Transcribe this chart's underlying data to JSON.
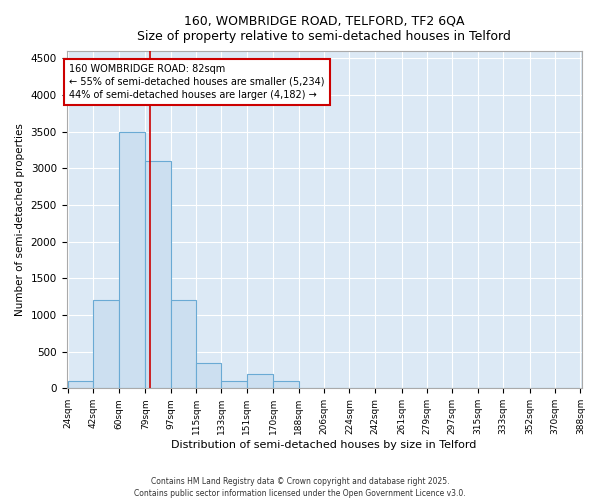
{
  "title_line1": "160, WOMBRIDGE ROAD, TELFORD, TF2 6QA",
  "title_line2": "Size of property relative to semi-detached houses in Telford",
  "xlabel": "Distribution of semi-detached houses by size in Telford",
  "ylabel": "Number of semi-detached properties",
  "bins": [
    24,
    42,
    60,
    79,
    97,
    115,
    133,
    151,
    170,
    188,
    206,
    224,
    242,
    261,
    279,
    297,
    315,
    333,
    352,
    370,
    388
  ],
  "counts": [
    100,
    1200,
    3500,
    3100,
    1200,
    350,
    100,
    200,
    100,
    0,
    0,
    0,
    0,
    0,
    0,
    0,
    0,
    0,
    0,
    0
  ],
  "bar_color": "#ccdff0",
  "bar_edge_color": "#6aaad4",
  "property_size": 82,
  "vline_color": "#cc0000",
  "annotation_text": "160 WOMBRIDGE ROAD: 82sqm\n← 55% of semi-detached houses are smaller (5,234)\n44% of semi-detached houses are larger (4,182) →",
  "annotation_box_color": "#cc0000",
  "ylim": [
    0,
    4600
  ],
  "yticks": [
    0,
    500,
    1000,
    1500,
    2000,
    2500,
    3000,
    3500,
    4000,
    4500
  ],
  "background_color": "#dce9f5",
  "grid_color": "#ffffff",
  "footer_line1": "Contains HM Land Registry data © Crown copyright and database right 2025.",
  "footer_line2": "Contains public sector information licensed under the Open Government Licence v3.0."
}
